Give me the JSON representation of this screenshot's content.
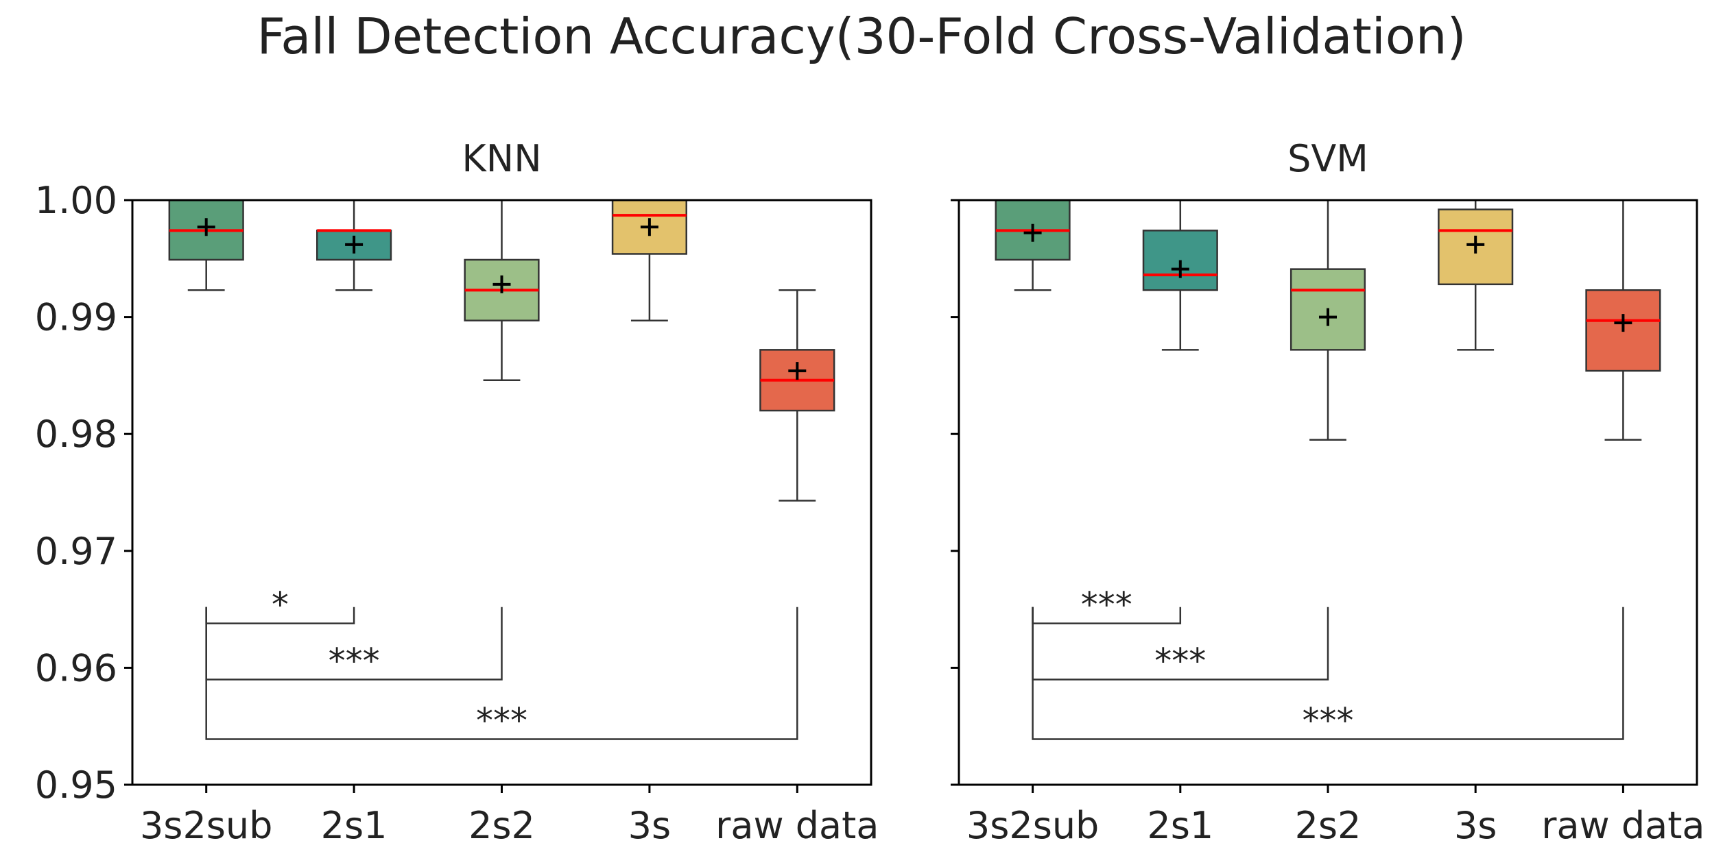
{
  "title": "Fall Detection Accuracy(30-Fold Cross-Validation)",
  "colors": {
    "box_fills": [
      "#5a9e79",
      "#3f9688",
      "#9cbf88",
      "#e3c26c",
      "#e4684c"
    ],
    "median": "#ff0000",
    "edge": "#333333",
    "mean_marker": "#000000"
  },
  "chart_data": [
    {
      "type": "box",
      "title": "KNN",
      "categories": [
        "3s2sub",
        "2s1",
        "2s2",
        "3s",
        "raw data"
      ],
      "ylim": [
        0.95,
        1.0
      ],
      "yticks": [
        0.95,
        0.96,
        0.97,
        0.98,
        0.99,
        1.0
      ],
      "ytick_labels": [
        "0.95",
        "0.96",
        "0.97",
        "0.98",
        "0.99",
        "1.00"
      ],
      "grid": false,
      "boxes": [
        {
          "category": "3s2sub",
          "whisker_low": 0.9923,
          "q1": 0.9949,
          "median": 0.9974,
          "q3": 1.0,
          "whisker_high": 1.0,
          "mean": 0.9977
        },
        {
          "category": "2s1",
          "whisker_low": 0.9923,
          "q1": 0.9949,
          "median": 0.9974,
          "q3": 0.9974,
          "whisker_high": 1.0,
          "mean": 0.9962
        },
        {
          "category": "2s2",
          "whisker_low": 0.9846,
          "q1": 0.9897,
          "median": 0.9923,
          "q3": 0.9949,
          "whisker_high": 1.0,
          "mean": 0.9928
        },
        {
          "category": "3s",
          "whisker_low": 0.9897,
          "q1": 0.9954,
          "median": 0.9987,
          "q3": 1.0,
          "whisker_high": 1.0,
          "mean": 0.9977
        },
        {
          "category": "raw data",
          "whisker_low": 0.9743,
          "q1": 0.982,
          "median": 0.9846,
          "q3": 0.9872,
          "whisker_high": 0.9923,
          "mean": 0.9854
        }
      ],
      "significance": [
        {
          "from": "3s2sub",
          "to": "2s1",
          "label": "*"
        },
        {
          "from": "3s2sub",
          "to": "2s2",
          "label": "***"
        },
        {
          "from": "3s2sub",
          "to": "raw data",
          "label": "***"
        }
      ]
    },
    {
      "type": "box",
      "title": "SVM",
      "categories": [
        "3s2sub",
        "2s1",
        "2s2",
        "3s",
        "raw data"
      ],
      "ylim": [
        0.95,
        1.0
      ],
      "yticks": [
        0.95,
        0.96,
        0.97,
        0.98,
        0.99,
        1.0
      ],
      "ytick_labels": [],
      "grid": false,
      "boxes": [
        {
          "category": "3s2sub",
          "whisker_low": 0.9923,
          "q1": 0.9949,
          "median": 0.9974,
          "q3": 1.0,
          "whisker_high": 1.0,
          "mean": 0.9972
        },
        {
          "category": "2s1",
          "whisker_low": 0.9872,
          "q1": 0.9923,
          "median": 0.9936,
          "q3": 0.9974,
          "whisker_high": 1.0,
          "mean": 0.9941
        },
        {
          "category": "2s2",
          "whisker_low": 0.9795,
          "q1": 0.9872,
          "median": 0.9923,
          "q3": 0.9941,
          "whisker_high": 1.0,
          "mean": 0.99
        },
        {
          "category": "3s",
          "whisker_low": 0.9872,
          "q1": 0.9928,
          "median": 0.9974,
          "q3": 0.9992,
          "whisker_high": 1.0,
          "mean": 0.9962
        },
        {
          "category": "raw data",
          "whisker_low": 0.9795,
          "q1": 0.9854,
          "median": 0.9897,
          "q3": 0.9923,
          "whisker_high": 1.0,
          "mean": 0.9895
        }
      ],
      "significance": [
        {
          "from": "3s2sub",
          "to": "2s1",
          "label": "***"
        },
        {
          "from": "3s2sub",
          "to": "2s2",
          "label": "***"
        },
        {
          "from": "3s2sub",
          "to": "raw data",
          "label": "***"
        }
      ]
    }
  ]
}
